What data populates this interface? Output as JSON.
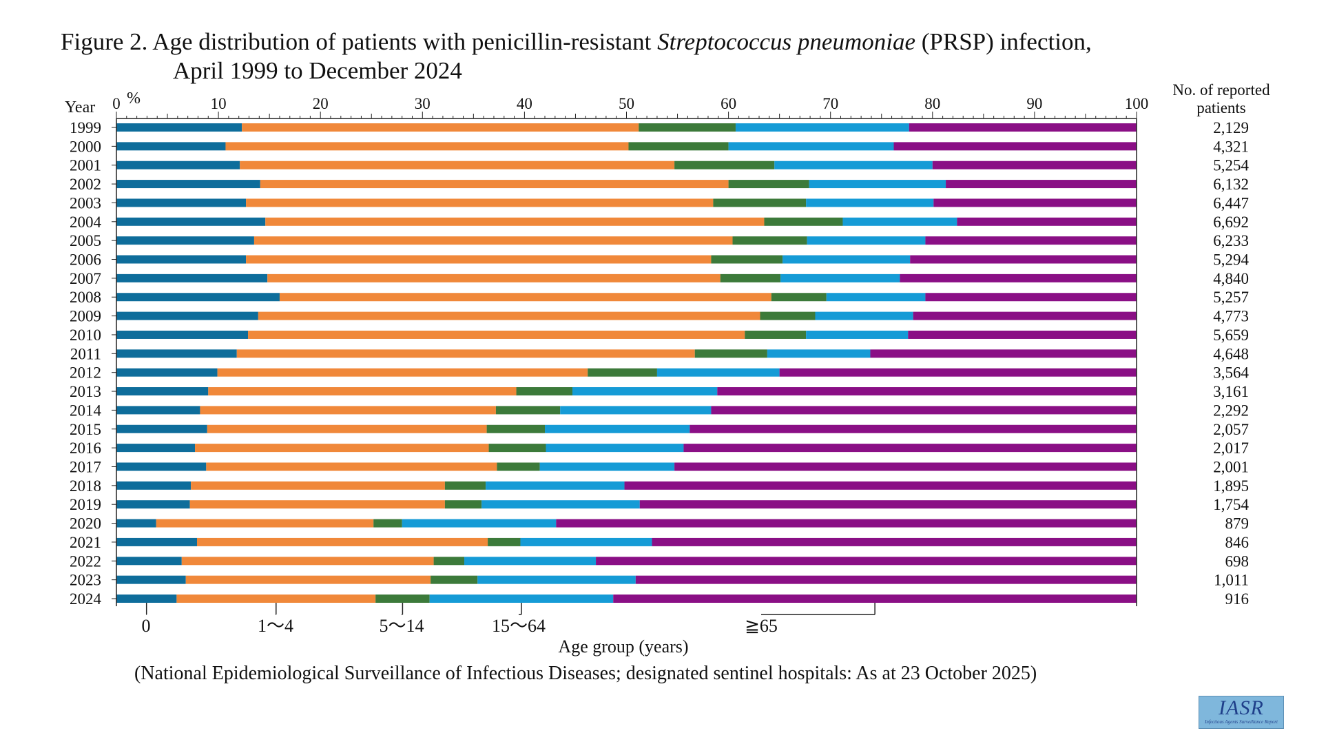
{
  "title_line1_pre": "Figure 2. Age distribution of patients with penicillin-resistant ",
  "title_italic": "Streptococcus pneumoniae",
  "title_line1_post": " (PRSP) infection,",
  "title_line2": "April 1999 to December 2024",
  "source_note": "(National Epidemiological Surveillance of Infectious Diseases; designated sentinel hospitals: As at 23 October 2025)",
  "logo": {
    "main": "IASR",
    "sub": "Infectious Agents Surveillance Report"
  },
  "chart_data": {
    "type": "bar",
    "orientation": "horizontal",
    "stacked": true,
    "percent_axis_unit": "%",
    "year_axis_label": "Year",
    "count_column_label_line1": "No. of reported",
    "count_column_label_line2": "patients",
    "xlim": [
      0,
      100
    ],
    "x_ticks": [
      0,
      10,
      20,
      30,
      40,
      50,
      60,
      70,
      80,
      90,
      100
    ],
    "legend_title": "Age group (years)",
    "legend_placement": "bottom",
    "categories": [
      "1999",
      "2000",
      "2001",
      "2002",
      "2003",
      "2004",
      "2005",
      "2006",
      "2007",
      "2008",
      "2009",
      "2010",
      "2011",
      "2012",
      "2013",
      "2014",
      "2015",
      "2016",
      "2017",
      "2018",
      "2019",
      "2020",
      "2021",
      "2022",
      "2023",
      "2024"
    ],
    "reported_patients": [
      "2,129",
      "4,321",
      "5,254",
      "6,132",
      "6,447",
      "6,692",
      "6,233",
      "5,294",
      "4,840",
      "5,257",
      "4,773",
      "5,659",
      "4,648",
      "3,564",
      "3,161",
      "2,292",
      "2,057",
      "2,017",
      "2,001",
      "1,895",
      "1,754",
      "879",
      "846",
      "698",
      "1,011",
      "916"
    ],
    "series": [
      {
        "name": "0",
        "color": "#0e6d9b",
        "values": [
          12.3,
          10.7,
          12.1,
          14.1,
          12.7,
          14.6,
          13.5,
          12.7,
          14.8,
          16.0,
          13.9,
          12.9,
          11.8,
          9.9,
          9.0,
          8.2,
          8.9,
          7.7,
          8.8,
          7.3,
          7.2,
          3.9,
          7.9,
          6.4,
          6.8,
          5.9
        ]
      },
      {
        "name": "1～4",
        "color": "#f0883a",
        "values": [
          38.9,
          39.5,
          42.6,
          45.9,
          45.8,
          48.9,
          46.9,
          45.6,
          44.4,
          48.2,
          49.2,
          48.7,
          44.9,
          36.3,
          30.2,
          29.0,
          27.4,
          28.8,
          28.5,
          24.9,
          25.0,
          21.3,
          28.5,
          24.7,
          24.0,
          19.5
        ]
      },
      {
        "name": "5～14",
        "color": "#3c7a3a",
        "values": [
          9.5,
          9.8,
          9.8,
          7.9,
          9.1,
          7.7,
          7.3,
          7.0,
          5.9,
          5.4,
          5.4,
          6.0,
          7.1,
          6.8,
          5.5,
          6.3,
          5.7,
          5.6,
          4.2,
          4.0,
          3.6,
          2.8,
          3.2,
          3.0,
          4.6,
          5.3
        ]
      },
      {
        "name": "15～64",
        "color": "#159bd6",
        "values": [
          17.0,
          16.2,
          15.5,
          13.4,
          12.5,
          11.2,
          11.6,
          12.5,
          11.7,
          9.7,
          9.6,
          10.0,
          10.1,
          12.0,
          14.2,
          14.8,
          14.2,
          13.5,
          13.2,
          13.6,
          15.5,
          15.1,
          12.9,
          12.9,
          15.5,
          18.0
        ]
      },
      {
        "name": "≧65",
        "color": "#8a0f85",
        "values": [
          22.3,
          23.8,
          20.0,
          18.7,
          19.9,
          17.6,
          20.7,
          22.2,
          23.2,
          20.7,
          21.9,
          22.4,
          26.1,
          35.0,
          41.1,
          41.7,
          43.8,
          44.4,
          45.3,
          50.2,
          48.7,
          56.9,
          47.5,
          53.0,
          49.1,
          51.3
        ]
      }
    ]
  }
}
